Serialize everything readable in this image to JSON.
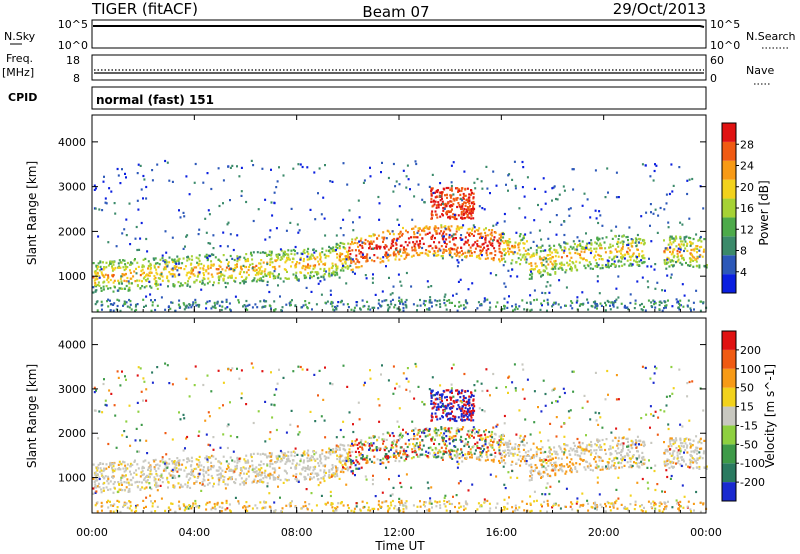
{
  "header": {
    "title": "TIGER (fitACF)",
    "beam": "Beam 07",
    "date": "29/Oct/2013"
  },
  "top_panels": {
    "nsky_label": "N.Sky",
    "nsky_ticks": [
      "10^5",
      "10^0"
    ],
    "nsearch_label": "N.Search",
    "nsearch_ticks": [
      "10^5",
      "10^0"
    ],
    "freq_label": "Freq.",
    "freq_unit": "[MHz]",
    "freq_ticks": [
      "18",
      "8"
    ],
    "nave_label": "Nave",
    "nave_ticks": [
      "60",
      "0"
    ],
    "cpid_label": "CPID",
    "cpid_text": "normal (fast) 151"
  },
  "colors": {
    "power_scale": [
      "#0a1fe0",
      "#2c58b8",
      "#3b8a6a",
      "#4daa4a",
      "#a6d235",
      "#f2d21c",
      "#f79a16",
      "#f05a12",
      "#e01212"
    ],
    "velocity_scale": [
      "#1a2ad0",
      "#2a7a60",
      "#3e9a48",
      "#8ed040",
      "#c8c8c0",
      "#f2d21c",
      "#f79a16",
      "#f05a12",
      "#e01212"
    ]
  },
  "chart_data": [
    {
      "type": "heatmap",
      "name": "power-panel",
      "ylabel": "Slant Range [km]",
      "yticks": [
        1000,
        2000,
        3000,
        4000
      ],
      "ylim": [
        200,
        4600
      ],
      "xlim": [
        0,
        24
      ],
      "colorbar_label": "Power [dB]",
      "colorbar_ticks": [
        "4",
        "8",
        "12",
        "16",
        "20",
        "24",
        "28"
      ],
      "colorbar_range": [
        0,
        32
      ]
    },
    {
      "type": "heatmap",
      "name": "velocity-panel",
      "ylabel": "Slant Range [km]",
      "yticks": [
        1000,
        2000,
        3000,
        4000
      ],
      "ylim": [
        200,
        4600
      ],
      "xlim": [
        0,
        24
      ],
      "xlabel": "Time UT",
      "xticks": [
        "00:00",
        "04:00",
        "08:00",
        "12:00",
        "16:00",
        "20:00",
        "00:00"
      ],
      "colorbar_label": "Velocity [m s^-1]",
      "colorbar_ticks": [
        "200",
        "100",
        "50",
        "15",
        "-15",
        "-50",
        "-100",
        "-200"
      ]
    }
  ]
}
